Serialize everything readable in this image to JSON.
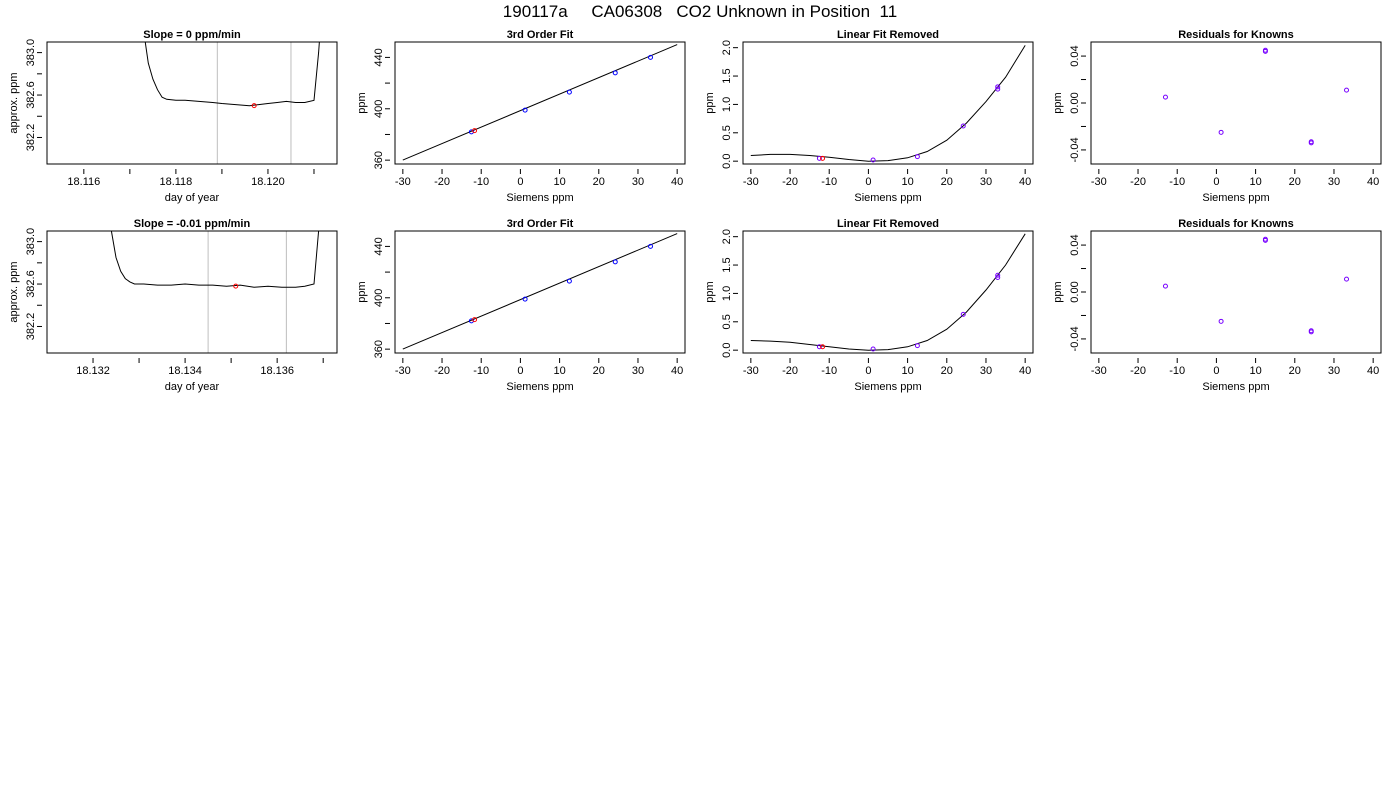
{
  "page": {
    "title": "190117a     CA06308   CO2 Unknown in Position  11"
  },
  "chart_data": [
    {
      "type": "line",
      "title": "Slope =  0  ppm/min",
      "xlabel": "day of year",
      "ylabel": "approx. ppm",
      "xlim": [
        18.1152,
        18.1215
      ],
      "ylim": [
        381.95,
        383.1
      ],
      "xticks": [
        18.116,
        18.118,
        18.12
      ],
      "xtick_labels": [
        "18.116",
        "18.118",
        "18.120"
      ],
      "xticks_minor": [
        18.117,
        18.119,
        18.121
      ],
      "yticks": [
        382.2,
        382.6,
        383.0
      ],
      "ytick_labels": [
        "382.2",
        "382.6",
        "383.0"
      ],
      "yticks_minor": [
        382.4,
        382.8
      ],
      "vlines": [
        18.1189,
        18.1205
      ],
      "series": [
        {
          "x": [
            18.1172,
            18.1173,
            18.1174,
            18.1175,
            18.1176,
            18.1177,
            18.1178,
            18.118,
            18.1182,
            18.1185,
            18.1188,
            18.119,
            18.1193,
            18.1196,
            18.1198,
            18.12,
            18.1202,
            18.1204,
            18.1206,
            18.1208,
            18.121,
            18.1211,
            18.1212
          ],
          "y": [
            383.6,
            383.2,
            382.9,
            382.75,
            382.65,
            382.58,
            382.56,
            382.55,
            382.55,
            382.54,
            382.53,
            382.52,
            382.51,
            382.5,
            382.51,
            382.52,
            382.53,
            382.54,
            382.53,
            382.53,
            382.55,
            383.0,
            383.6
          ]
        }
      ],
      "highlight": {
        "x": 18.1197,
        "y": 382.5,
        "color": "#ff0000"
      }
    },
    {
      "type": "scatter",
      "title": "3rd Order Fit",
      "xlabel": "Siemens ppm",
      "ylabel": "ppm",
      "xlim": [
        -32,
        42
      ],
      "ylim": [
        357,
        452
      ],
      "xticks": [
        -30,
        -20,
        -10,
        0,
        10,
        20,
        30,
        40
      ],
      "yticks": [
        360,
        400,
        440
      ],
      "yticks_minor": [
        380,
        420
      ],
      "fit_curve": [
        [
          -30,
          360
        ],
        [
          40,
          450
        ]
      ],
      "points": [
        {
          "x": -12.5,
          "y": 382,
          "color": "#0000ff"
        },
        {
          "x": 1.2,
          "y": 399,
          "color": "#0000ff"
        },
        {
          "x": 12.5,
          "y": 413,
          "color": "#0000ff"
        },
        {
          "x": 24.2,
          "y": 428,
          "color": "#0000ff"
        },
        {
          "x": 33.2,
          "y": 440,
          "color": "#0000ff"
        }
      ],
      "highlight": {
        "x": -11.7,
        "y": 383,
        "color": "#ff0000"
      }
    },
    {
      "type": "scatter",
      "title": "Linear Fit Removed",
      "xlabel": "Siemens ppm",
      "ylabel": "ppm",
      "xlim": [
        -32,
        42
      ],
      "ylim": [
        -0.05,
        2.1
      ],
      "xticks": [
        -30,
        -20,
        -10,
        0,
        10,
        20,
        30,
        40
      ],
      "yticks": [
        0,
        0.5,
        1,
        1.5,
        2
      ],
      "ytick_labels": [
        "0.0",
        "0.5",
        "1.0",
        "1.5",
        "2.0"
      ],
      "fit_curve": [
        [
          -30,
          0.1
        ],
        [
          -25,
          0.12
        ],
        [
          -20,
          0.12
        ],
        [
          -15,
          0.1
        ],
        [
          -10,
          0.07
        ],
        [
          -5,
          0.03
        ],
        [
          0,
          0.0
        ],
        [
          5,
          0.01
        ],
        [
          10,
          0.06
        ],
        [
          15,
          0.17
        ],
        [
          20,
          0.37
        ],
        [
          25,
          0.67
        ],
        [
          30,
          1.05
        ],
        [
          35,
          1.48
        ],
        [
          40,
          2.04
        ]
      ],
      "points": [
        {
          "x": -12.5,
          "y": 0.05,
          "color": "#7700ff"
        },
        {
          "x": 1.2,
          "y": 0.02,
          "color": "#7700ff"
        },
        {
          "x": 12.5,
          "y": 0.08,
          "color": "#7700ff"
        },
        {
          "x": 24.2,
          "y": 0.62,
          "color": "#7700ff"
        },
        {
          "x": 33.0,
          "y": 1.27,
          "color": "#7700ff"
        },
        {
          "x": 33.0,
          "y": 1.31,
          "color": "#7700ff"
        }
      ],
      "highlight": {
        "x": -11.7,
        "y": 0.05,
        "color": "#ff0000"
      }
    },
    {
      "type": "scatter",
      "title": "Residuals for Knowns",
      "xlabel": "Siemens ppm",
      "ylabel": "ppm",
      "xlim": [
        -32,
        42
      ],
      "ylim": [
        -0.052,
        0.052
      ],
      "xticks": [
        -30,
        -20,
        -10,
        0,
        10,
        20,
        30,
        40
      ],
      "yticks": [
        -0.04,
        0,
        0.04
      ],
      "ytick_labels": [
        "-0.04",
        "0.00",
        "0.04"
      ],
      "yticks_minor": [
        -0.02,
        0.02
      ],
      "points": [
        {
          "x": -13.0,
          "y": 0.005,
          "color": "#7700ff"
        },
        {
          "x": 1.2,
          "y": -0.025,
          "color": "#7700ff"
        },
        {
          "x": 12.5,
          "y": 0.044,
          "color": "#7700ff"
        },
        {
          "x": 12.5,
          "y": 0.045,
          "color": "#7700ff"
        },
        {
          "x": 24.2,
          "y": -0.034,
          "color": "#7700ff"
        },
        {
          "x": 24.2,
          "y": -0.033,
          "color": "#7700ff"
        },
        {
          "x": 33.2,
          "y": 0.011,
          "color": "#7700ff"
        }
      ]
    },
    {
      "type": "line",
      "title": "Slope =  -0.01  ppm/min",
      "xlabel": "day of year",
      "ylabel": "approx. ppm",
      "xlim": [
        18.131,
        18.1373
      ],
      "ylim": [
        381.95,
        383.1
      ],
      "xticks": [
        18.132,
        18.134,
        18.136
      ],
      "xtick_labels": [
        "18.132",
        "18.134",
        "18.136"
      ],
      "xticks_minor": [
        18.133,
        18.135,
        18.137
      ],
      "yticks": [
        382.2,
        382.6,
        383.0
      ],
      "ytick_labels": [
        "382.2",
        "382.6",
        "383.0"
      ],
      "yticks_minor": [
        382.4,
        382.8
      ],
      "vlines": [
        18.1345,
        18.1362
      ],
      "series": [
        {
          "x": [
            18.1323,
            18.1324,
            18.1325,
            18.1326,
            18.1327,
            18.1328,
            18.1329,
            18.1331,
            18.1334,
            18.1337,
            18.134,
            18.1343,
            18.1346,
            18.1349,
            18.1352,
            18.1355,
            18.1358,
            18.1361,
            18.1364,
            18.1366,
            18.1368,
            18.1369,
            18.137
          ],
          "y": [
            383.6,
            383.1,
            382.85,
            382.72,
            382.65,
            382.62,
            382.6,
            382.6,
            382.59,
            382.59,
            382.6,
            382.59,
            382.59,
            382.58,
            382.59,
            382.57,
            382.58,
            382.57,
            382.57,
            382.58,
            382.6,
            383.1,
            383.6
          ]
        }
      ],
      "highlight": {
        "x": 18.1351,
        "y": 382.58,
        "color": "#ff0000"
      }
    },
    {
      "type": "scatter",
      "title": "3rd Order Fit",
      "xlabel": "Siemens ppm",
      "ylabel": "ppm",
      "xlim": [
        -32,
        42
      ],
      "ylim": [
        357,
        452
      ],
      "xticks": [
        -30,
        -20,
        -10,
        0,
        10,
        20,
        30,
        40
      ],
      "yticks": [
        360,
        400,
        440
      ],
      "yticks_minor": [
        380,
        420
      ],
      "fit_curve": [
        [
          -30,
          360
        ],
        [
          40,
          450
        ]
      ],
      "points": [
        {
          "x": -12.5,
          "y": 382,
          "color": "#0000ff"
        },
        {
          "x": 1.2,
          "y": 399,
          "color": "#0000ff"
        },
        {
          "x": 12.5,
          "y": 413,
          "color": "#0000ff"
        },
        {
          "x": 24.2,
          "y": 428,
          "color": "#0000ff"
        },
        {
          "x": 33.2,
          "y": 440,
          "color": "#0000ff"
        }
      ],
      "highlight": {
        "x": -11.7,
        "y": 383,
        "color": "#ff0000"
      }
    },
    {
      "type": "scatter",
      "title": "Linear Fit Removed",
      "xlabel": "Siemens ppm",
      "ylabel": "ppm",
      "xlim": [
        -32,
        42
      ],
      "ylim": [
        -0.05,
        2.1
      ],
      "xticks": [
        -30,
        -20,
        -10,
        0,
        10,
        20,
        30,
        40
      ],
      "yticks": [
        0,
        0.5,
        1,
        1.5,
        2
      ],
      "ytick_labels": [
        "0.0",
        "0.5",
        "1.0",
        "1.5",
        "2.0"
      ],
      "fit_curve": [
        [
          -30,
          0.17
        ],
        [
          -25,
          0.16
        ],
        [
          -20,
          0.14
        ],
        [
          -15,
          0.1
        ],
        [
          -10,
          0.06
        ],
        [
          -5,
          0.02
        ],
        [
          0,
          0.0
        ],
        [
          5,
          0.01
        ],
        [
          10,
          0.06
        ],
        [
          15,
          0.17
        ],
        [
          20,
          0.37
        ],
        [
          25,
          0.67
        ],
        [
          30,
          1.06
        ],
        [
          35,
          1.5
        ],
        [
          40,
          2.05
        ]
      ],
      "points": [
        {
          "x": -12.5,
          "y": 0.06,
          "color": "#7700ff"
        },
        {
          "x": 1.2,
          "y": 0.02,
          "color": "#7700ff"
        },
        {
          "x": 12.5,
          "y": 0.08,
          "color": "#7700ff"
        },
        {
          "x": 24.2,
          "y": 0.63,
          "color": "#7700ff"
        },
        {
          "x": 33.0,
          "y": 1.28,
          "color": "#7700ff"
        },
        {
          "x": 33.0,
          "y": 1.32,
          "color": "#7700ff"
        }
      ],
      "highlight": {
        "x": -11.7,
        "y": 0.06,
        "color": "#ff0000"
      }
    },
    {
      "type": "scatter",
      "title": "Residuals for Knowns",
      "xlabel": "Siemens ppm",
      "ylabel": "ppm",
      "xlim": [
        -32,
        42
      ],
      "ylim": [
        -0.052,
        0.052
      ],
      "xticks": [
        -30,
        -20,
        -10,
        0,
        10,
        20,
        30,
        40
      ],
      "yticks": [
        -0.04,
        0,
        0.04
      ],
      "ytick_labels": [
        "-0.04",
        "0.00",
        "0.04"
      ],
      "yticks_minor": [
        -0.02,
        0.02
      ],
      "points": [
        {
          "x": -13.0,
          "y": 0.005,
          "color": "#7700ff"
        },
        {
          "x": 1.2,
          "y": -0.025,
          "color": "#7700ff"
        },
        {
          "x": 12.5,
          "y": 0.044,
          "color": "#7700ff"
        },
        {
          "x": 12.5,
          "y": 0.045,
          "color": "#7700ff"
        },
        {
          "x": 24.2,
          "y": -0.034,
          "color": "#7700ff"
        },
        {
          "x": 24.2,
          "y": -0.033,
          "color": "#7700ff"
        },
        {
          "x": 33.2,
          "y": 0.011,
          "color": "#7700ff"
        }
      ]
    }
  ]
}
